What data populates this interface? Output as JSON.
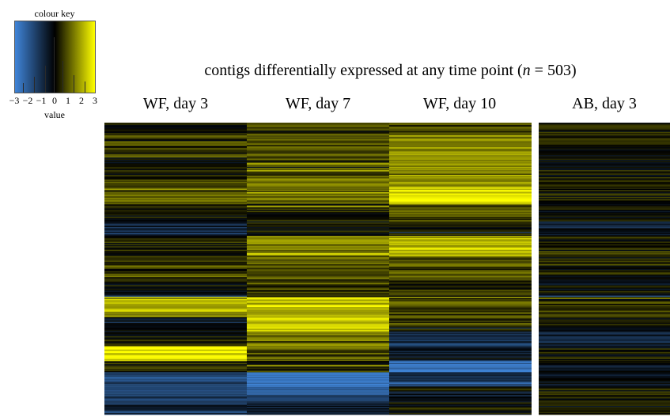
{
  "colour_key": {
    "title": "colour key",
    "ticks": [
      "−3",
      "−2",
      "−1",
      "0",
      "1",
      "2",
      "3"
    ],
    "value_label": "value",
    "colors": {
      "negative": "#3f84d8",
      "zero": "#000000",
      "positive": "#ffff00"
    }
  },
  "chart_data": {
    "type": "heatmap",
    "title_before": "contigs differentially expressed at any time point (",
    "title_n": "n",
    "title_after": " = 503)",
    "columns": [
      "WF, day 3",
      "WF, day 7",
      "WF, day 10",
      "AB, day 3"
    ],
    "value_range": [
      -3,
      3
    ],
    "n_rows": 503,
    "row_segments": [
      {
        "rows": [
          0,
          20
        ],
        "values": [
          0.2,
          0.6,
          0.8,
          0.3
        ]
      },
      {
        "rows": [
          20,
          40
        ],
        "values": [
          0.8,
          1.0,
          1.6,
          0.6
        ]
      },
      {
        "rows": [
          40,
          60
        ],
        "values": [
          0.5,
          0.8,
          1.4,
          0.2
        ]
      },
      {
        "rows": [
          60,
          90
        ],
        "values": [
          0.0,
          1.0,
          1.4,
          0.1
        ]
      },
      {
        "rows": [
          90,
          110
        ],
        "values": [
          0.7,
          1.1,
          2.0,
          0.2
        ]
      },
      {
        "rows": [
          110,
          140
        ],
        "values": [
          1.2,
          1.4,
          2.7,
          0.3
        ]
      },
      {
        "rows": [
          140,
          170
        ],
        "values": [
          0.1,
          0.3,
          1.0,
          0.0
        ]
      },
      {
        "rows": [
          170,
          195
        ],
        "values": [
          -0.7,
          0.2,
          0.4,
          -0.5
        ]
      },
      {
        "rows": [
          195,
          230
        ],
        "values": [
          0.4,
          1.6,
          2.2,
          0.3
        ]
      },
      {
        "rows": [
          230,
          270
        ],
        "values": [
          0.6,
          1.0,
          0.9,
          0.2
        ]
      },
      {
        "rows": [
          270,
          300
        ],
        "values": [
          0.1,
          0.8,
          0.4,
          0.0
        ]
      },
      {
        "rows": [
          300,
          335
        ],
        "values": [
          2.0,
          2.3,
          0.8,
          0.6
        ]
      },
      {
        "rows": [
          335,
          360
        ],
        "values": [
          -0.4,
          2.5,
          0.6,
          0.0
        ]
      },
      {
        "rows": [
          360,
          385
        ],
        "values": [
          0.3,
          1.2,
          -1.2,
          -0.6
        ]
      },
      {
        "rows": [
          385,
          410
        ],
        "values": [
          2.6,
          1.0,
          -0.4,
          0.2
        ]
      },
      {
        "rows": [
          410,
          430
        ],
        "values": [
          0.4,
          0.4,
          -2.5,
          -0.3
        ]
      },
      {
        "rows": [
          430,
          455
        ],
        "values": [
          -1.6,
          -2.6,
          -1.2,
          -0.4
        ]
      },
      {
        "rows": [
          455,
          480
        ],
        "values": [
          -1.2,
          -1.8,
          -0.3,
          0.2
        ]
      },
      {
        "rows": [
          480,
          503
        ],
        "values": [
          -0.8,
          -0.6,
          0.1,
          0.0
        ]
      }
    ]
  }
}
